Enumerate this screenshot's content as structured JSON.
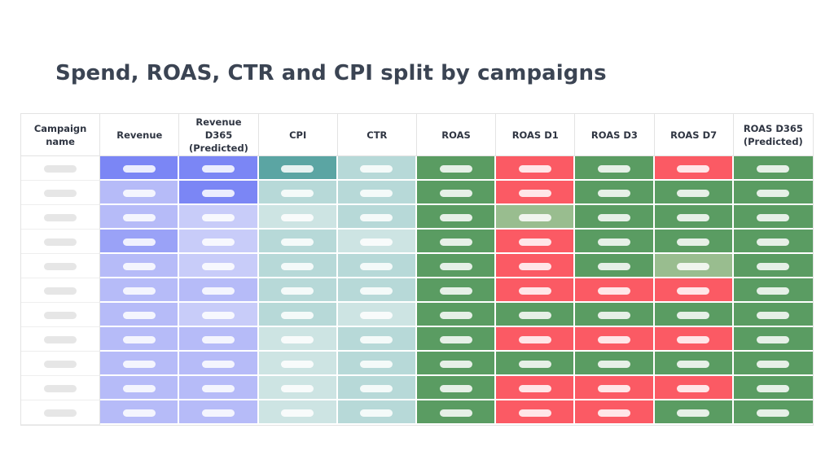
{
  "title": "Spend, ROAS, CTR and CPI split by campaigns",
  "columns": [
    "Campaign\nname",
    "Revenue",
    "Revenue D365\n(Predicted)",
    "CPI",
    "CTR",
    "ROAS",
    "ROAS D1",
    "ROAS D3",
    "ROAS D7",
    "ROAS D365\n(Predicted)"
  ],
  "colors": {
    "blue_1": "#7b86f5",
    "blue_2": "#9aa2f7",
    "blue_3": "#b6bbf8",
    "blue_4": "#c8ccf9",
    "teal_1": "#5ba5a3",
    "teal_2": "#b7d9d8",
    "teal_3": "#cde4e3",
    "green": "#5a9c62",
    "green_light": "#99bd8f",
    "red": "#fb5a64",
    "blank": "#ffffff"
  },
  "rows": [
    [
      "blank",
      "blue_1",
      "blue_1",
      "teal_1",
      "teal_2",
      "green",
      "red",
      "green",
      "red",
      "green"
    ],
    [
      "blank",
      "blue_3",
      "blue_1",
      "teal_2",
      "teal_2",
      "green",
      "red",
      "green",
      "green",
      "green"
    ],
    [
      "blank",
      "blue_3",
      "blue_4",
      "teal_3",
      "teal_2",
      "green",
      "green_light",
      "green",
      "green",
      "green"
    ],
    [
      "blank",
      "blue_2",
      "blue_4",
      "teal_2",
      "teal_3",
      "green",
      "red",
      "green",
      "green",
      "green"
    ],
    [
      "blank",
      "blue_3",
      "blue_4",
      "teal_2",
      "teal_2",
      "green",
      "red",
      "green",
      "green_light",
      "green"
    ],
    [
      "blank",
      "blue_3",
      "blue_3",
      "teal_2",
      "teal_2",
      "green",
      "red",
      "red",
      "red",
      "green"
    ],
    [
      "blank",
      "blue_3",
      "blue_4",
      "teal_2",
      "teal_3",
      "green",
      "green",
      "green",
      "green",
      "green"
    ],
    [
      "blank",
      "blue_3",
      "blue_3",
      "teal_3",
      "teal_2",
      "green",
      "red",
      "red",
      "red",
      "green"
    ],
    [
      "blank",
      "blue_3",
      "blue_3",
      "teal_3",
      "teal_2",
      "green",
      "green",
      "green",
      "green",
      "green"
    ],
    [
      "blank",
      "blue_3",
      "blue_3",
      "teal_3",
      "teal_2",
      "green",
      "red",
      "red",
      "red",
      "green"
    ],
    [
      "blank",
      "blue_3",
      "blue_3",
      "teal_3",
      "teal_2",
      "green",
      "red",
      "red",
      "green",
      "green"
    ]
  ]
}
